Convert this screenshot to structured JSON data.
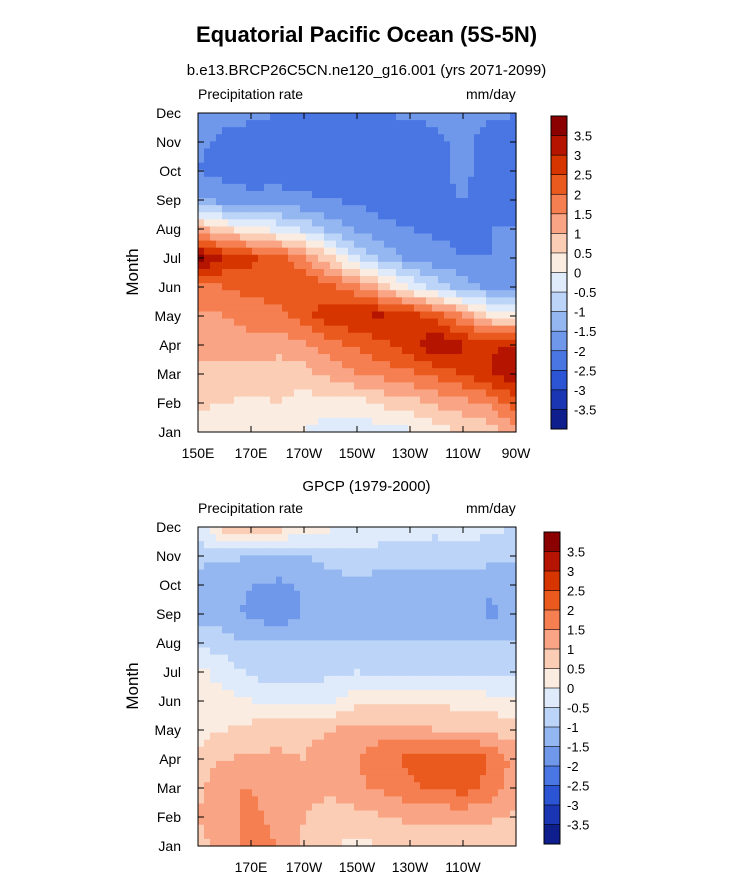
{
  "page": {
    "title": "Equatorial Pacific Ocean (5S-5N)",
    "subtitle": "b.e13.BRCP26C5CN.ne120_g16.001 (yrs 2071-2099)"
  },
  "colorbar": {
    "labels": [
      "3.5",
      "3",
      "2.5",
      "2",
      "1.5",
      "1",
      "0.5",
      "0",
      "-0.5",
      "-1",
      "-1.5",
      "-2",
      "-2.5",
      "-3",
      "-3.5"
    ],
    "colors": [
      "#8b0000",
      "#b41400",
      "#d63500",
      "#ea5a1e",
      "#f57f50",
      "#f9a585",
      "#fbcdb5",
      "#fbece2",
      "#dfebfa",
      "#bcd4f7",
      "#94b7f1",
      "#6f98eb",
      "#4a76e4",
      "#2b55d4",
      "#1a36b2",
      "#0e1e8c"
    ]
  },
  "chart_data": [
    {
      "type": "heatmap",
      "title": "",
      "left_label": "Precipitation rate",
      "right_label": "mm/day",
      "ylabel": "Month",
      "months": [
        "Jan",
        "Feb",
        "Mar",
        "Apr",
        "May",
        "Jun",
        "Jul",
        "Aug",
        "Sep",
        "Oct",
        "Nov",
        "Dec"
      ],
      "x_ticks": [
        "150E",
        "170E",
        "170W",
        "150W",
        "130W",
        "110W",
        "90W"
      ],
      "xlim_deg_east": [
        150,
        270
      ],
      "columns_deg_east": [
        150,
        160,
        170,
        180,
        190,
        200,
        210,
        220,
        230,
        240,
        250,
        260,
        270
      ],
      "values": [
        [
          0.3,
          0.1,
          0.0,
          0.2,
          0.0,
          -0.3,
          -0.3,
          -0.2,
          -0.1,
          0.3,
          0.5,
          0.7,
          1.2
        ],
        [
          0.6,
          0.5,
          0.4,
          0.5,
          0.3,
          0.2,
          0.3,
          0.6,
          0.8,
          1.1,
          1.3,
          1.6,
          2.3
        ],
        [
          0.9,
          0.8,
          0.8,
          0.7,
          0.8,
          1.2,
          1.5,
          1.7,
          1.9,
          2.2,
          2.5,
          3.0,
          3.4
        ],
        [
          1.1,
          1.2,
          1.3,
          1.2,
          1.4,
          1.8,
          2.1,
          2.4,
          2.8,
          3.5,
          3.1,
          2.9,
          3.2
        ],
        [
          1.4,
          1.5,
          1.7,
          1.8,
          2.3,
          2.8,
          3.0,
          3.1,
          2.8,
          2.3,
          1.5,
          0.5,
          0.1
        ],
        [
          1.8,
          2.0,
          2.2,
          2.3,
          2.5,
          2.1,
          1.6,
          0.8,
          0.0,
          -0.7,
          -1.3,
          -1.6,
          -1.6
        ],
        [
          3.7,
          3.0,
          2.6,
          2.3,
          1.6,
          0.6,
          -0.5,
          -1.2,
          -1.6,
          -1.8,
          -2.0,
          -2.0,
          -1.9
        ],
        [
          1.2,
          0.5,
          0.2,
          -0.2,
          -0.6,
          -1.2,
          -1.6,
          -1.9,
          -2.0,
          -2.1,
          -2.1,
          -2.0,
          -2.0
        ],
        [
          -1.4,
          -1.7,
          -1.8,
          -1.8,
          -1.9,
          -2.0,
          -2.1,
          -2.2,
          -2.2,
          -2.1,
          -2.0,
          -2.1,
          -2.1
        ],
        [
          -2.0,
          -2.2,
          -2.3,
          -2.2,
          -2.3,
          -2.3,
          -2.3,
          -2.3,
          -2.2,
          -2.1,
          -1.9,
          -2.2,
          -2.3
        ],
        [
          -1.9,
          -2.1,
          -2.2,
          -2.3,
          -2.3,
          -2.5,
          -2.5,
          -2.4,
          -2.3,
          -2.1,
          -1.9,
          -2.2,
          -2.2
        ],
        [
          -1.8,
          -1.9,
          -1.9,
          -2.0,
          -2.1,
          -2.1,
          -2.1,
          -2.0,
          -1.9,
          -1.9,
          -1.8,
          -1.9,
          -2.0
        ]
      ]
    },
    {
      "type": "heatmap",
      "title": "GPCP (1979-2000)",
      "left_label": "Precipitation rate",
      "right_label": "mm/day",
      "ylabel": "Month",
      "months": [
        "Jan",
        "Feb",
        "Mar",
        "Apr",
        "May",
        "Jun",
        "Jul",
        "Aug",
        "Sep",
        "Oct",
        "Nov",
        "Dec"
      ],
      "x_ticks": [
        "170E",
        "170W",
        "150W",
        "130W",
        "110W"
      ],
      "xlim_deg_east": [
        150,
        270
      ],
      "columns_deg_east": [
        150,
        160,
        170,
        180,
        190,
        200,
        210,
        220,
        230,
        240,
        250,
        260,
        270
      ],
      "values": [
        [
          0.8,
          1.3,
          1.6,
          1.5,
          0.9,
          0.5,
          0.4,
          0.5,
          0.6,
          0.5,
          0.5,
          0.6,
          0.7
        ],
        [
          1.0,
          1.4,
          1.6,
          1.4,
          1.0,
          0.7,
          0.8,
          1.0,
          1.1,
          1.1,
          1.2,
          1.1,
          0.9
        ],
        [
          0.9,
          1.5,
          1.5,
          1.3,
          1.2,
          1.1,
          1.4,
          1.6,
          1.9,
          2.1,
          2.2,
          1.8,
          1.2
        ],
        [
          0.6,
          1.0,
          1.1,
          1.1,
          1.0,
          1.2,
          1.5,
          1.9,
          2.1,
          2.3,
          2.4,
          2.0,
          1.3
        ],
        [
          0.3,
          0.5,
          0.7,
          0.8,
          0.9,
          1.0,
          1.2,
          1.2,
          1.1,
          1.0,
          1.0,
          0.9,
          0.7
        ],
        [
          0.2,
          0.2,
          0.0,
          -0.2,
          -0.2,
          -0.1,
          0.3,
          0.4,
          0.4,
          0.4,
          0.3,
          0.2,
          0.1
        ],
        [
          0.1,
          -0.2,
          -0.6,
          -0.8,
          -0.7,
          -0.6,
          -0.5,
          -0.6,
          -0.6,
          -0.6,
          -0.7,
          -0.6,
          -0.6
        ],
        [
          -0.5,
          -0.8,
          -1.0,
          -1.0,
          -1.0,
          -1.0,
          -1.0,
          -1.0,
          -1.0,
          -1.0,
          -1.0,
          -1.0,
          -1.0
        ],
        [
          -1.2,
          -1.3,
          -1.6,
          -1.9,
          -1.5,
          -1.3,
          -1.3,
          -1.5,
          -1.5,
          -1.5,
          -1.2,
          -1.6,
          -1.3
        ],
        [
          -1.3,
          -1.4,
          -1.5,
          -1.6,
          -1.4,
          -1.2,
          -1.1,
          -1.3,
          -1.4,
          -1.4,
          -1.2,
          -1.4,
          -1.4
        ],
        [
          -0.8,
          -0.9,
          -1.0,
          -1.1,
          -1.0,
          -0.8,
          -0.7,
          -0.7,
          -0.7,
          -0.7,
          -0.7,
          -0.8,
          -0.8
        ],
        [
          -0.3,
          0.8,
          1.2,
          0.8,
          0.4,
          0.1,
          -0.1,
          -0.2,
          -0.3,
          -0.4,
          -0.3,
          -0.4,
          -0.5
        ]
      ]
    }
  ]
}
